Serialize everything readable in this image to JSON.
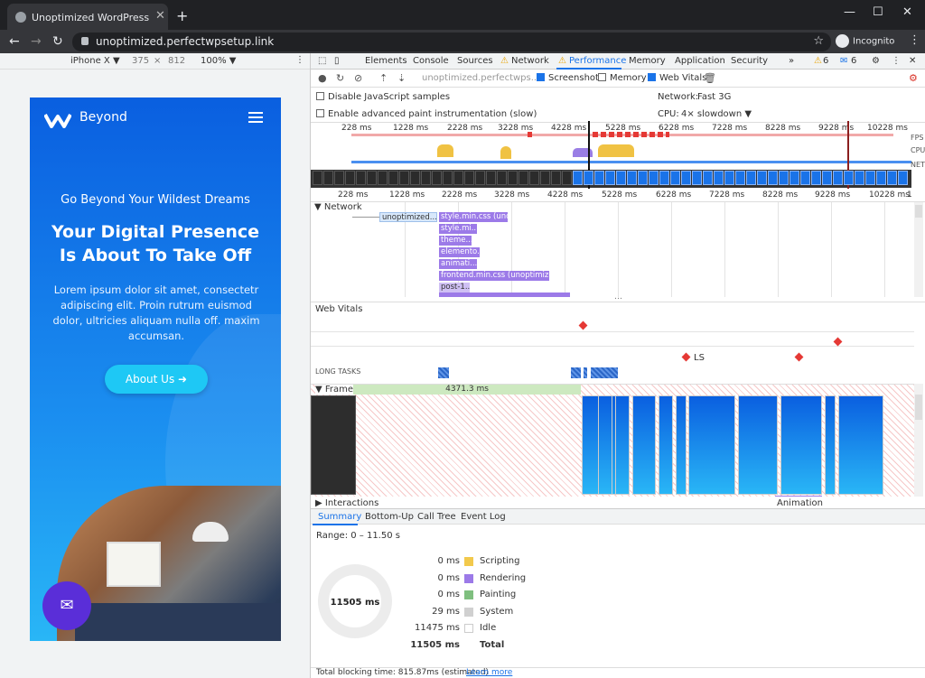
{
  "browser": {
    "tab_title": "Unoptimized WordPress Site – Ju",
    "url": "unoptimized.perfectwpsetup.link",
    "profile_label": "Incognito",
    "new_tab_glyph": "+",
    "close_tab_glyph": "✕"
  },
  "device_toolbar": {
    "device": "iPhone X ▼",
    "width": "375",
    "separator": "×",
    "height": "812",
    "zoom": "100% ▼"
  },
  "site": {
    "brand": "Beyond",
    "subheading": "Go Beyond Your Wildest Dreams",
    "heading": "Your Digital Presence Is About To Take Off",
    "body": "Lorem ipsum dolor sit amet, consectetr adipiscing elit. Proin rutrum euismod dolor, ultricies aliquam nulla off. maxim accumsan.",
    "cta": "About Us ➜"
  },
  "devtools": {
    "tabs": [
      "Elements",
      "Console",
      "Sources",
      "Network",
      "Performance",
      "Memory",
      "Application",
      "Security"
    ],
    "active_tab": "Performance",
    "warnings_count": "6",
    "messages_count": "6",
    "recording_target": "unoptimized.perfectwps...",
    "checkboxes": {
      "screenshots": "Screenshots",
      "memory": "Memory",
      "web_vitals": "Web Vitals",
      "disable_js": "Disable JavaScript samples",
      "advanced_paint": "Enable advanced paint instrumentation (slow)"
    },
    "network_throttle_label": "Network:",
    "network_throttle_value": "Fast 3G",
    "cpu_throttle_label": "CPU:",
    "cpu_throttle_value": "4× slowdown ▼",
    "track_labels": {
      "fps": "FPS",
      "cpu": "CPU",
      "net": "NET"
    },
    "ruler_ticks": [
      "228 ms",
      "1228 ms",
      "2228 ms",
      "3228 ms",
      "4228 ms",
      "5228 ms",
      "6228 ms",
      "7228 ms",
      "8228 ms",
      "9228 ms",
      "10228 ms"
    ],
    "ruler_ticks2": [
      "228 ms",
      "1228 ms",
      "2228 ms",
      "3228 ms",
      "4228 ms",
      "5228 ms",
      "6228 ms",
      "7228 ms",
      "8228 ms",
      "9228 ms",
      "10228 ms",
      "1"
    ],
    "network_section": "▼ Network",
    "requests": [
      {
        "label": "unoptimized....",
        "style": "light"
      },
      {
        "label": "style.min.css (uno...",
        "style": "purple"
      },
      {
        "label": "style.mi...",
        "style": "purple"
      },
      {
        "label": "theme...",
        "style": "purple"
      },
      {
        "label": "elemento...",
        "style": "purple"
      },
      {
        "label": "animati...",
        "style": "purple"
      },
      {
        "label": "frontend.min.css (unoptimized....",
        "style": "purple"
      },
      {
        "label": "post-1...",
        "style": "purple"
      }
    ],
    "web_vitals_label": "Web Vitals",
    "ls_label": "LS",
    "long_tasks_label": "LONG TASKS",
    "frames_label": "▼ Frames",
    "frame_duration": "4371.3 ms",
    "interactions_label": "▶ Interactions",
    "animation_label": "Animation",
    "summary_tabs": [
      "Summary",
      "Bottom-Up",
      "Call Tree",
      "Event Log"
    ],
    "range": "Range: 0 – 11.50 s",
    "total_ms": "11505 ms",
    "breakdown": [
      {
        "value": "0 ms",
        "name": "Scripting",
        "color": "#f2c94c"
      },
      {
        "value": "0 ms",
        "name": "Rendering",
        "color": "#9c7ae8"
      },
      {
        "value": "0 ms",
        "name": "Painting",
        "color": "#7fbf7f"
      },
      {
        "value": "29 ms",
        "name": "System",
        "color": "#d0d0d0"
      },
      {
        "value": "11475 ms",
        "name": "Idle",
        "color": "#ffffff"
      },
      {
        "value": "11505 ms",
        "name": "Total",
        "color": ""
      }
    ],
    "footer_text": "Total blocking time: 815.87ms (estimated)",
    "footer_link": "Learn more"
  }
}
